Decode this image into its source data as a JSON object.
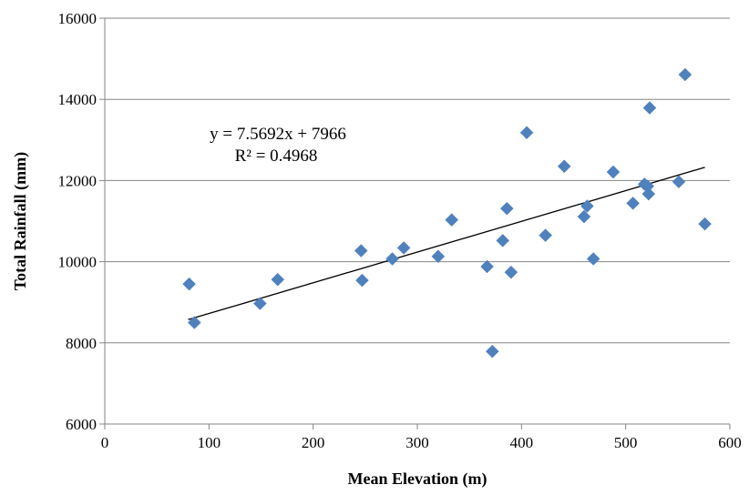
{
  "chart_data": {
    "type": "scatter",
    "xlabel": "Mean Elevation (m)",
    "ylabel": "Total Rainfall (mm)",
    "xlim": [
      0,
      600
    ],
    "ylim": [
      6000,
      16000
    ],
    "xticks": [
      "0",
      "100",
      "200",
      "300",
      "400",
      "500",
      "600"
    ],
    "yticks": [
      "6000",
      "8000",
      "10000",
      "12000",
      "14000",
      "16000"
    ],
    "grid": "horizontal",
    "series": [
      {
        "marker": "diamond",
        "color": "#4f81bd",
        "points": [
          {
            "x": 81,
            "y": 9450
          },
          {
            "x": 86,
            "y": 8500
          },
          {
            "x": 149,
            "y": 8970
          },
          {
            "x": 166,
            "y": 9560
          },
          {
            "x": 246,
            "y": 10270
          },
          {
            "x": 247,
            "y": 9540
          },
          {
            "x": 276,
            "y": 10070
          },
          {
            "x": 287,
            "y": 10340
          },
          {
            "x": 320,
            "y": 10130
          },
          {
            "x": 333,
            "y": 11030
          },
          {
            "x": 367,
            "y": 9880
          },
          {
            "x": 372,
            "y": 7790
          },
          {
            "x": 382,
            "y": 10520
          },
          {
            "x": 386,
            "y": 11310
          },
          {
            "x": 390,
            "y": 9740
          },
          {
            "x": 405,
            "y": 13180
          },
          {
            "x": 423,
            "y": 10650
          },
          {
            "x": 441,
            "y": 12350
          },
          {
            "x": 460,
            "y": 11110
          },
          {
            "x": 463,
            "y": 11370
          },
          {
            "x": 469,
            "y": 10070
          },
          {
            "x": 488,
            "y": 12210
          },
          {
            "x": 507,
            "y": 11440
          },
          {
            "x": 518,
            "y": 11910
          },
          {
            "x": 521,
            "y": 11860
          },
          {
            "x": 522,
            "y": 11670
          },
          {
            "x": 523,
            "y": 13790
          },
          {
            "x": 551,
            "y": 11970
          },
          {
            "x": 557,
            "y": 14610
          },
          {
            "x": 576,
            "y": 10930
          }
        ]
      }
    ],
    "trendline": {
      "type": "linear",
      "slope": 7.5692,
      "intercept": 7966,
      "x_range": [
        80,
        576
      ],
      "equation": "y = 7.5692x + 7966",
      "r_squared": "R² = 0.4968"
    }
  }
}
